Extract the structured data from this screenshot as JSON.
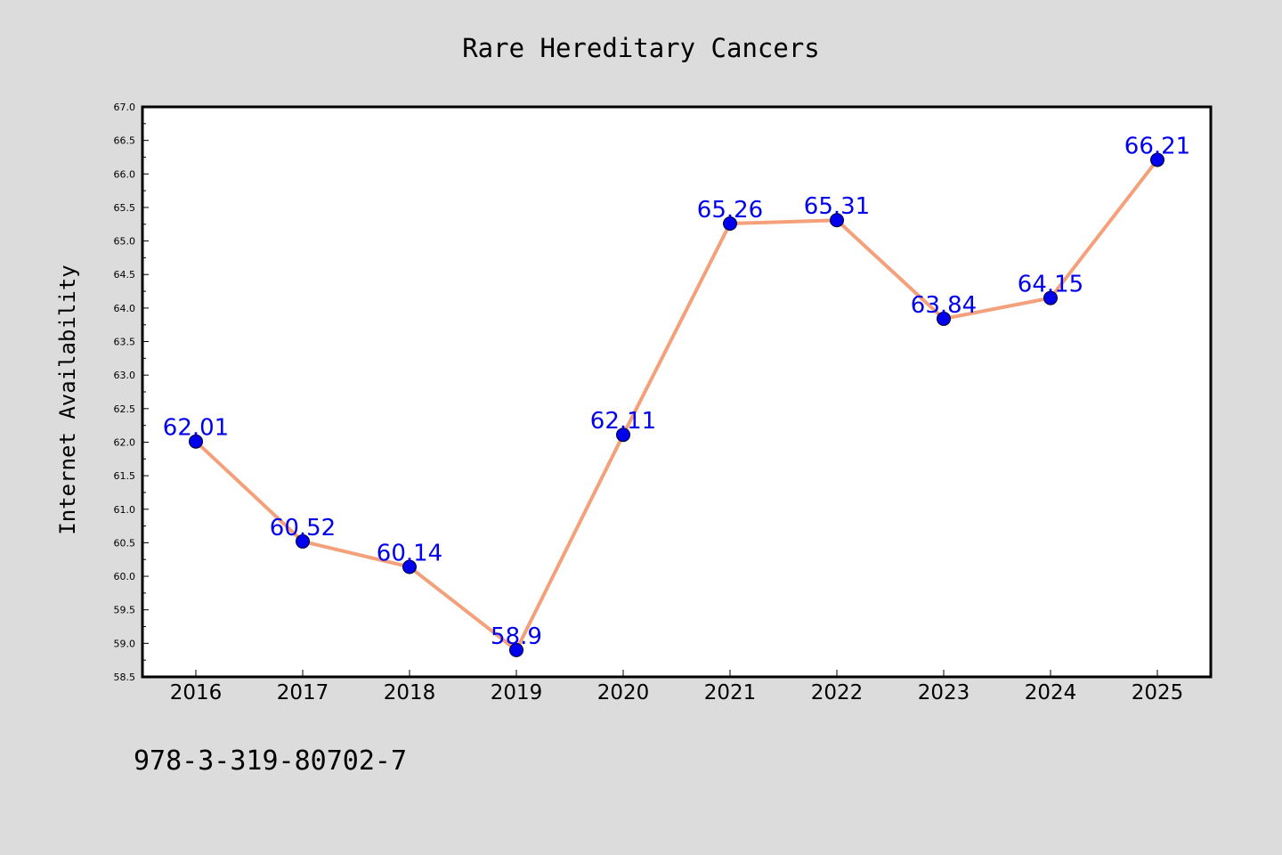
{
  "chart_data": {
    "type": "line",
    "title": "Rare Hereditary Cancers",
    "xlabel": "",
    "ylabel": "Internet Availability",
    "categories": [
      "2016",
      "2017",
      "2018",
      "2019",
      "2020",
      "2021",
      "2022",
      "2023",
      "2024",
      "2025"
    ],
    "series": [
      {
        "values": [
          62.01,
          60.52,
          60.14,
          58.9,
          62.11,
          65.26,
          65.31,
          63.84,
          64.15,
          66.21
        ],
        "data_labels": [
          "62.01",
          "60.52",
          "60.14",
          "58.9",
          "62.11",
          "65.26",
          "65.31",
          "63.84",
          "64.15",
          "66.21"
        ],
        "line_color": "#f4a07a",
        "marker_color": "#0000ee",
        "label_color": "#0000ee"
      }
    ],
    "ylim": [
      58.5,
      67.0
    ],
    "yticks": [
      "58.5",
      "59.0",
      "59.5",
      "60.0",
      "60.5",
      "61.0",
      "61.5",
      "62.0",
      "62.5",
      "63.0",
      "63.5",
      "64.0",
      "64.5",
      "65.0",
      "65.5",
      "66.0",
      "66.5",
      "67.0"
    ],
    "grid": false,
    "legend": "none"
  },
  "footer": {
    "code": "978-3-319-80702-7"
  },
  "colors": {
    "background": "#dcdcdc",
    "plot_background": "#ffffff",
    "axis": "#000000"
  }
}
